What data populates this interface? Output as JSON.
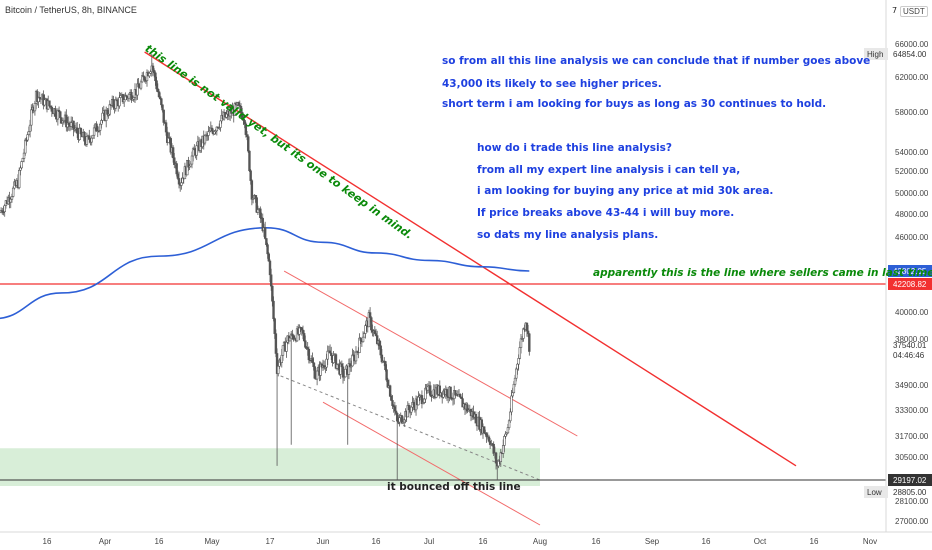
{
  "header": {
    "symbol_title": "Bitcoin / TetherUS, 8h, BINANCE",
    "unit_label": "USDT",
    "top_scale_label": "7"
  },
  "annotations": {
    "blue_lines": [
      "so from all this line analysis we can conclude that if number goes above",
      "43,000 its likely to see higher prices.",
      "short term i am looking for buys as long as 30 continues to hold.",
      "how do i trade this line analysis?",
      "from all my expert line analysis i can tell ya,",
      "i am looking for buying any price at mid 30k area.",
      "If price breaks above 43-44 i will buy more.",
      "so dats my line analysis plans."
    ],
    "diagonal_note": "this line is not valid yet, but its one to keep in mind.",
    "sellers_note": "apparently this is the line where sellers came in last time.",
    "bounce_note": "it bounced off this line"
  },
  "colors": {
    "candle": "#555555",
    "resistance": "#f23030",
    "moving_average": "#2d5fd6",
    "channel": "#f26a6a",
    "support_zone": "#d4ecd4",
    "low_tag": "#333333",
    "blue_text": "#1e40e0",
    "green_text": "#0a8a0a"
  },
  "chart_data": {
    "type": "candlestick",
    "symbol": "BTCUSDT",
    "interval": "8h",
    "exchange": "BINANCE",
    "y_axis_ticks": [
      66000,
      62000,
      58000,
      54000,
      52000,
      50000,
      48000,
      46000,
      40000,
      38000,
      34900,
      33300,
      31700,
      30500,
      28100,
      27000
    ],
    "y_axis_labels": [
      "66000.00",
      "62000.00",
      "58000.00",
      "54000.00",
      "52000.00",
      "50000.00",
      "48000.00",
      "46000.00",
      "40000.00",
      "38000.00",
      "34900.00",
      "33300.00",
      "31700.00",
      "30500.00",
      "28100.00",
      "27000.00"
    ],
    "ylim": [
      26500,
      68000
    ],
    "x_axis_labels": [
      "16",
      "Apr",
      "16",
      "May",
      "17",
      "Jun",
      "16",
      "Jul",
      "16",
      "Aug",
      "16",
      "Sep",
      "16",
      "Oct",
      "16",
      "Nov"
    ],
    "price_tags": {
      "high": {
        "label": "High",
        "value": "64854.00"
      },
      "ma": {
        "value": "42802.05"
      },
      "resistance": {
        "value": "42208.82"
      },
      "current": {
        "value": "37540.01",
        "countdown": "04:46:46"
      },
      "support": {
        "value": "29197.02"
      },
      "low": {
        "label": "Low",
        "value": "28805.00"
      }
    },
    "levels": {
      "horizontal_resistance": 42208.82,
      "support": 29197.02,
      "support_zone": [
        29197.02,
        31000
      ]
    },
    "close_path": [
      [
        "Mar 1",
        47000
      ],
      [
        "Mar 8",
        51000
      ],
      [
        "Mar 13",
        60000
      ],
      [
        "Mar 20",
        57500
      ],
      [
        "Mar 27",
        55000
      ],
      [
        "Apr 3",
        58800
      ],
      [
        "Apr 10",
        60500
      ],
      [
        "Apr 14",
        63500
      ],
      [
        "Apr 18",
        56000
      ],
      [
        "Apr 22",
        51000
      ],
      [
        "Apr 26",
        54000
      ],
      [
        "May 3",
        57000
      ],
      [
        "May 8",
        58500
      ],
      [
        "May 10",
        57500
      ],
      [
        "May 12",
        50000
      ],
      [
        "May 15",
        47000
      ],
      [
        "May 17",
        43000
      ],
      [
        "May 19",
        36000
      ],
      [
        "May 22",
        38000
      ],
      [
        "May 26",
        38500
      ],
      [
        "May 30",
        35500
      ],
      [
        "Jun 3",
        37000
      ],
      [
        "Jun 7",
        35500
      ],
      [
        "Jun 10",
        36800
      ],
      [
        "Jun 14",
        39500
      ],
      [
        "Jun 18",
        36500
      ],
      [
        "Jun 22",
        32500
      ],
      [
        "Jun 26",
        33500
      ],
      [
        "Jul 1",
        34500
      ],
      [
        "Jul 6",
        34500
      ],
      [
        "Jul 10",
        33800
      ],
      [
        "Jul 14",
        32800
      ],
      [
        "Jul 18",
        31500
      ],
      [
        "Jul 20",
        30000
      ],
      [
        "Jul 23",
        32200
      ],
      [
        "Jul 26",
        37000
      ],
      [
        "Jul 28",
        39500
      ],
      [
        "Jul 29",
        37540
      ]
    ],
    "moving_average_path": [
      [
        "Mar 1",
        39500
      ],
      [
        "Mar 20",
        41500
      ],
      [
        "Apr 16",
        44200
      ],
      [
        "May 16",
        46800
      ],
      [
        "Jun 1",
        45500
      ],
      [
        "Jun 16",
        44500
      ],
      [
        "Jul 1",
        43800
      ],
      [
        "Jul 16",
        43200
      ],
      [
        "Jul 29",
        42802
      ]
    ]
  }
}
